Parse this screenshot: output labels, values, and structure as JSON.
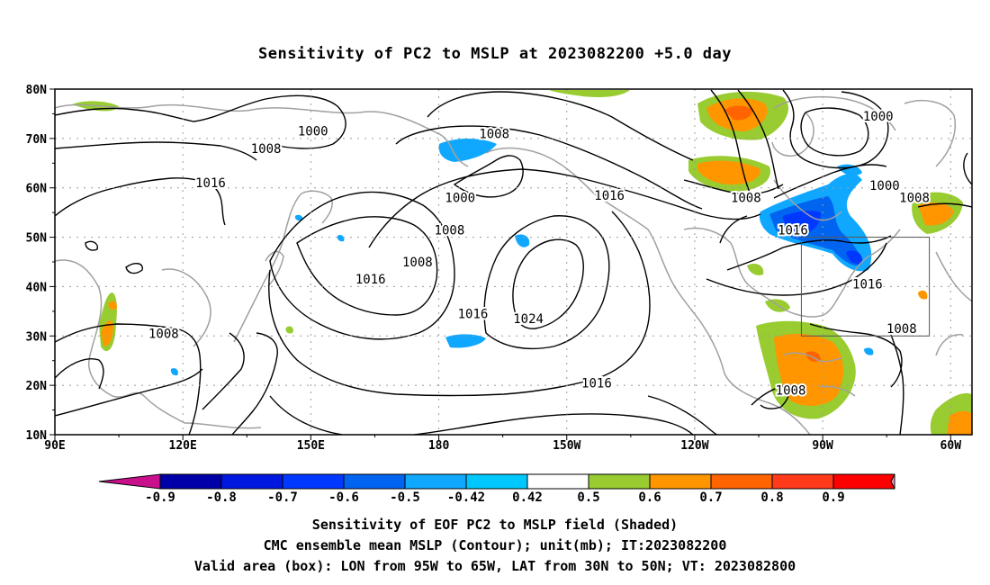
{
  "title": "Sensitivity of PC2 to MSLP at 2023082200 +5.0 day",
  "map": {
    "lat_labels": [
      "80N",
      "70N",
      "60N",
      "50N",
      "40N",
      "30N",
      "20N",
      "10N"
    ],
    "lon_labels": [
      "90E",
      "120E",
      "150E",
      "180",
      "150W",
      "120W",
      "90W",
      "60W"
    ],
    "contour_labels": [
      {
        "text": "1000",
        "lon": 150.5,
        "lat": 71.5
      },
      {
        "text": "1008",
        "lon": 139.5,
        "lat": 68.0
      },
      {
        "text": "1016",
        "lon": 126.5,
        "lat": 61.0
      },
      {
        "text": "1008",
        "lon": 115.5,
        "lat": 30.5
      },
      {
        "text": "1016",
        "lon": 164.0,
        "lat": 41.5
      },
      {
        "text": "1008",
        "lon": 175.0,
        "lat": 45.0
      },
      {
        "text": "1008",
        "lon": -167.0,
        "lat": 71.0
      },
      {
        "text": "1000",
        "lon": -175.0,
        "lat": 58.0
      },
      {
        "text": "1008",
        "lon": -177.5,
        "lat": 51.5
      },
      {
        "text": "1016",
        "lon": -140.0,
        "lat": 58.5
      },
      {
        "text": "1016",
        "lon": -172.0,
        "lat": 34.5
      },
      {
        "text": "1024",
        "lon": -159.0,
        "lat": 33.5
      },
      {
        "text": "1016",
        "lon": -143.0,
        "lat": 20.5
      },
      {
        "text": "1008",
        "lon": -108.0,
        "lat": 58.0
      },
      {
        "text": "1000",
        "lon": -77.0,
        "lat": 74.5
      },
      {
        "text": "1016",
        "lon": -97.0,
        "lat": 51.5
      },
      {
        "text": "1000",
        "lon": -75.5,
        "lat": 60.5
      },
      {
        "text": "1008",
        "lon": -68.5,
        "lat": 58.0
      },
      {
        "text": "1016",
        "lon": -79.5,
        "lat": 40.5
      },
      {
        "text": "1008",
        "lon": -71.5,
        "lat": 31.5
      },
      {
        "text": "1008",
        "lon": -97.5,
        "lat": 19.0
      }
    ],
    "valid_box": {
      "lon_min": -95,
      "lon_max": -65,
      "lat_min": 30,
      "lat_max": 50
    }
  },
  "colorbar": {
    "labels": [
      "-0.9",
      "-0.8",
      "-0.7",
      "-0.6",
      "-0.5",
      "-0.42",
      "0.42",
      "0.5",
      "0.6",
      "0.7",
      "0.8",
      "0.9"
    ],
    "colors": {
      "low_end": "#c8108c",
      "high_end": "#f49ac2",
      "bins": [
        "#0000a8",
        "#0018e0",
        "#0038ff",
        "#0064f0",
        "#10a8ff",
        "#00c8ff",
        "#ffffff",
        "#98cc30",
        "#ff9600",
        "#ff6400",
        "#ff3a1a",
        "#ff0000"
      ]
    }
  },
  "captions": [
    "Sensitivity of EOF PC2 to MSLP field (Shaded)",
    "CMC ensemble mean MSLP (Contour); unit(mb); IT:2023082200",
    "Valid area (box): LON from 95W to 65W, LAT from 30N to 50N; VT: 2023082800"
  ]
}
